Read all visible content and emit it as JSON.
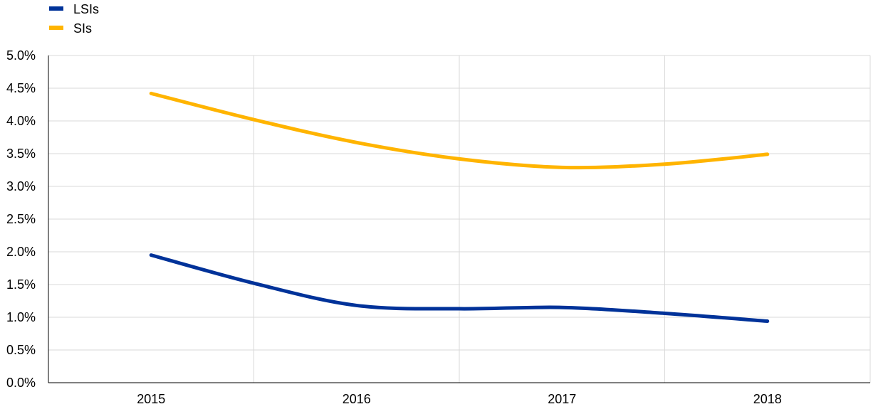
{
  "chart_data": {
    "type": "line",
    "title": "",
    "xlabel": "",
    "ylabel": "",
    "categories": [
      "2015",
      "2016",
      "2017",
      "2018"
    ],
    "x": [
      2015,
      2015.5,
      2016,
      2016.5,
      2017,
      2017.5,
      2018
    ],
    "series": [
      {
        "name": "LSIs",
        "color": "#003299",
        "values": [
          1.95,
          1.52,
          1.18,
          1.13,
          1.15,
          1.06,
          0.94
        ]
      },
      {
        "name": "SIs",
        "color": "#ffb400",
        "values": [
          4.42,
          4.02,
          3.67,
          3.42,
          3.29,
          3.34,
          3.49
        ]
      }
    ],
    "ylim": [
      0,
      5
    ],
    "yticks": [
      "0.0%",
      "0.5%",
      "1.0%",
      "1.5%",
      "2.0%",
      "2.5%",
      "3.0%",
      "3.5%",
      "4.0%",
      "4.5%",
      "5.0%"
    ],
    "grid": true,
    "legend_position": "top-left",
    "smooth": true
  }
}
